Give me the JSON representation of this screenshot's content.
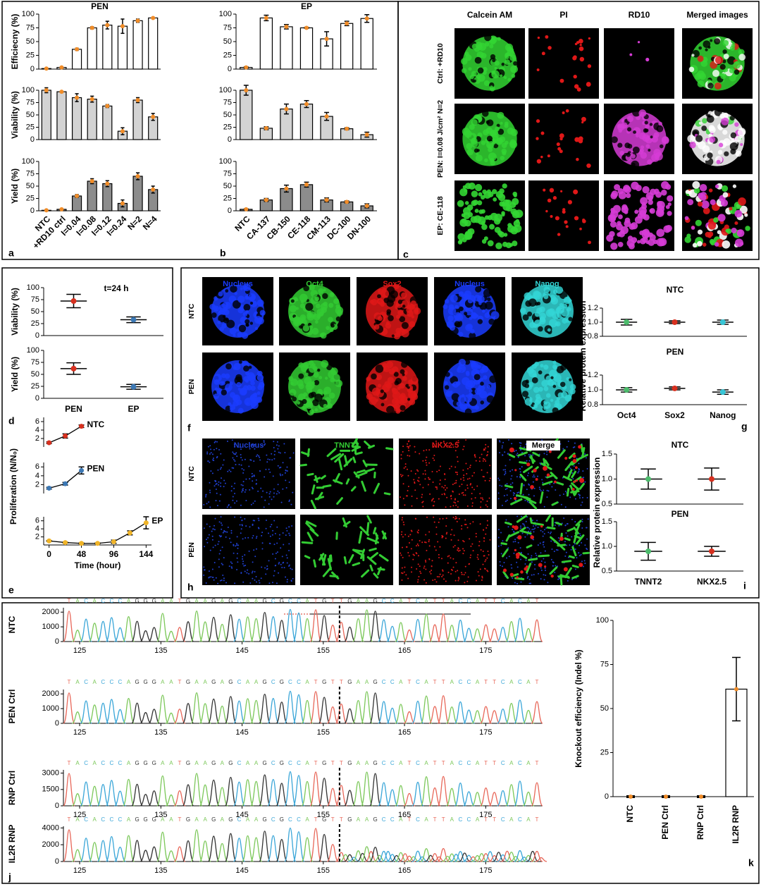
{
  "chart_data": [
    {
      "type": "bar",
      "title": "PEN",
      "ylabel": "Efficiecny (%)",
      "values": [
        1,
        3,
        36,
        75,
        80,
        78,
        88,
        93
      ],
      "errors": [
        0.5,
        1,
        2,
        2,
        7,
        13,
        3,
        1
      ],
      "color": "#ffffff",
      "ylim": [
        0,
        100
      ],
      "yticks": [
        0,
        25,
        50,
        75,
        100
      ]
    },
    {
      "type": "bar",
      "ylabel": "Viability (%)",
      "values": [
        100,
        97,
        85,
        82,
        68,
        17,
        80,
        46
      ],
      "errors": [
        5,
        1,
        8,
        6,
        3,
        7,
        5,
        7
      ],
      "color": "#d3d3d3",
      "ylim": [
        0,
        100
      ],
      "yticks": [
        0,
        25,
        50,
        75,
        100
      ]
    },
    {
      "type": "bar",
      "ylabel": "Yield (%)",
      "panel_label": "a",
      "categories": [
        "NTC",
        "+RD10 ctrl",
        "I=0.04",
        "I=0.08",
        "I=0.12",
        "I=0.24",
        "N=2",
        "N=4"
      ],
      "values": [
        1,
        3,
        30,
        60,
        55,
        15,
        70,
        43
      ],
      "errors": [
        0.5,
        1,
        3,
        5,
        6,
        7,
        7,
        7
      ],
      "color": "#8c8c8c",
      "ylim": [
        0,
        100
      ],
      "yticks": [
        0,
        25,
        50,
        75,
        100
      ]
    },
    {
      "type": "bar",
      "title": "EP",
      "values": [
        3,
        93,
        77,
        75,
        55,
        83,
        92
      ],
      "errors": [
        1,
        5,
        4,
        1,
        13,
        4,
        7
      ],
      "color": "#ffffff",
      "ylim": [
        0,
        100
      ],
      "yticks": [
        0,
        25,
        50,
        75,
        100
      ]
    },
    {
      "type": "bar",
      "values": [
        100,
        23,
        62,
        72,
        47,
        22,
        10
      ],
      "errors": [
        10,
        3,
        10,
        7,
        8,
        2,
        5
      ],
      "color": "#d3d3d3",
      "ylim": [
        0,
        100
      ],
      "yticks": [
        0,
        25,
        50,
        75,
        100
      ]
    },
    {
      "type": "bar",
      "panel_label": "b",
      "categories": [
        "NTC",
        "CA-137",
        "CB-150",
        "CE-118",
        "CM-113",
        "DC-100",
        "DN-100"
      ],
      "values": [
        3,
        22,
        45,
        53,
        22,
        18,
        10
      ],
      "errors": [
        1,
        3,
        7,
        5,
        4,
        2,
        4
      ],
      "color": "#8c8c8c",
      "ylim": [
        0,
        100
      ],
      "yticks": [
        0,
        25,
        50,
        75,
        100
      ]
    },
    {
      "type": "dot",
      "title": "t=24 h",
      "ylabel": "Viability (%)",
      "values": [
        72,
        33
      ],
      "errors": [
        14,
        6
      ],
      "colors": [
        "#d7301f",
        "#3c78b4"
      ],
      "ylim": [
        0,
        100
      ],
      "yticks": [
        0,
        25,
        50,
        75,
        100
      ]
    },
    {
      "type": "dot",
      "ylabel": "Yield (%)",
      "panel_label": "d",
      "categories": [
        "PEN",
        "EP"
      ],
      "values": [
        62,
        24
      ],
      "errors": [
        12,
        5
      ],
      "colors": [
        "#d7301f",
        "#3c78b4"
      ],
      "ylim": [
        0,
        100
      ],
      "yticks": [
        0,
        25,
        50,
        75,
        100
      ]
    },
    {
      "type": "line",
      "x": [
        0,
        24,
        48
      ],
      "series": [
        {
          "name": "NTC",
          "color": "#d7301f",
          "values": [
            1,
            2.6,
            4.9
          ],
          "errors": [
            0.2,
            0.5,
            0.3
          ]
        }
      ],
      "xlim": [
        -8,
        152
      ],
      "ylim": [
        0,
        7
      ],
      "yticks": [
        2,
        4,
        6
      ]
    },
    {
      "type": "line",
      "ylabel": "Proliferation (N/N₀)",
      "x": [
        0,
        24,
        48
      ],
      "series": [
        {
          "name": "PEN",
          "color": "#3c78b4",
          "values": [
            1.2,
            2.2,
            5.2
          ],
          "errors": [
            0.2,
            0.3,
            0.8
          ]
        }
      ],
      "xlim": [
        -8,
        152
      ],
      "ylim": [
        0,
        7
      ],
      "yticks": [
        2,
        4,
        6
      ]
    },
    {
      "type": "line",
      "panel_label": "e",
      "xlabel": "Time (hour)",
      "x": [
        0,
        24,
        48,
        72,
        96,
        120,
        144
      ],
      "series": [
        {
          "name": "EP",
          "color": "#f0b428",
          "values": [
            1,
            0.6,
            0.4,
            0.4,
            0.8,
            3,
            5.5
          ],
          "errors": [
            0.1,
            0.1,
            0.1,
            0.1,
            0.4,
            0.5,
            1.5
          ]
        }
      ],
      "xlim": [
        -8,
        152
      ],
      "xticks": [
        0,
        48,
        96,
        144
      ],
      "ylim": [
        0,
        7
      ],
      "yticks": [
        2,
        4,
        6
      ]
    },
    {
      "type": "dot",
      "title": "NTC",
      "ylabel": "Relative protein expression",
      "values": [
        1.0,
        1.0,
        1.0
      ],
      "errors": [
        0.04,
        0.02,
        0.03
      ],
      "colors": [
        "#4cbb6c",
        "#d7301f",
        "#38c6d6"
      ],
      "ylim": [
        0.8,
        1.2
      ],
      "yticks": [
        0.8,
        {
          "value": 1,
          "label": "1.0"
        },
        1.2
      ]
    },
    {
      "type": "dot",
      "title": "PEN",
      "panel_label": "g",
      "categories": [
        "Oct4",
        "Sox2",
        "Nanog"
      ],
      "values": [
        1.0,
        1.02,
        0.97
      ],
      "errors": [
        0.03,
        0.02,
        0.03
      ],
      "colors": [
        "#4cbb6c",
        "#d7301f",
        "#38c6d6"
      ],
      "ylim": [
        0.8,
        1.2
      ],
      "yticks": [
        0.8,
        {
          "value": 1,
          "label": "1.0"
        },
        1.2
      ]
    },
    {
      "type": "dot",
      "title": "NTC",
      "ylabel": "Relative protein expression",
      "values": [
        1.0,
        1.0
      ],
      "errors": [
        0.2,
        0.22
      ],
      "colors": [
        "#4cbb6c",
        "#d7301f"
      ],
      "ylim": [
        0.5,
        1.5
      ],
      "yticks": [
        0.5,
        {
          "value": 1,
          "label": "1.0"
        },
        1.5
      ]
    },
    {
      "type": "dot",
      "title": "PEN",
      "panel_label": "i",
      "categories": [
        "TNNT2",
        "NKX2.5"
      ],
      "values": [
        0.9,
        0.9
      ],
      "errors": [
        0.18,
        0.1
      ],
      "colors": [
        "#4cbb6c",
        "#d7301f"
      ],
      "ylim": [
        0.5,
        1.5
      ],
      "yticks": [
        0.5,
        {
          "value": 1,
          "label": "1.0"
        },
        1.5
      ]
    },
    {
      "type": "chromatogram",
      "ylabel": "NTC",
      "sequence": "TACACCCAGGGAATGAAGAGCAAGCGCCATGTTGAAGCCATCATTACCATTCACAT",
      "cut_site": 157,
      "xlim": [
        123,
        182
      ],
      "xticks": [
        125,
        135,
        145,
        155,
        165,
        175
      ],
      "ylim": [
        0,
        2300
      ],
      "yticks": [
        0,
        1000,
        2000
      ]
    },
    {
      "type": "chromatogram",
      "ylabel": "PEN Ctrl",
      "sequence": "TACACCCAGGGAATGAAGAGCAAGCGCCATGTTGAAGCCATCATTACCATTCACAT",
      "cut_site": 157,
      "xlim": [
        123,
        182
      ],
      "xticks": [
        125,
        135,
        145,
        155,
        165,
        175
      ],
      "ylim": [
        0,
        2300
      ],
      "yticks": [
        0,
        1000,
        2000
      ]
    },
    {
      "type": "chromatogram",
      "ylabel": "RNP Ctrl",
      "sequence": "TACACCCAGGGAATGAAGAGCAAGCGCCATGTTGAAGCCATCATTACCATTCACAT",
      "cut_site": 157,
      "xlim": [
        123,
        182
      ],
      "xticks": [
        125,
        135,
        145,
        155,
        165,
        175
      ],
      "ylim": [
        0,
        3300
      ],
      "yticks": [
        0,
        1500,
        3000
      ]
    },
    {
      "type": "chromatogram",
      "ylabel": "IL2R RNP",
      "panel_label": "j",
      "sequence": "TACACCCAGGGAATGAAGAGCAAGCGCCATGTTGAAGCCATCATTACCATTCACAT",
      "cut_site": 157,
      "xlim": [
        123,
        182
      ],
      "xticks": [
        125,
        135,
        145,
        155,
        165,
        175
      ],
      "ylim": [
        0,
        4200
      ],
      "yticks": [
        0,
        2000,
        4000
      ]
    },
    {
      "type": "bar",
      "ylabel": "Knockout efficiency (Indel %)",
      "panel_label": "k",
      "categories": [
        "NTC",
        "PEN Ctrl",
        "RNP Ctrl",
        "IL2R RNP"
      ],
      "values": [
        0,
        0,
        0,
        61
      ],
      "errors": [
        0.5,
        0.5,
        0.5,
        18
      ],
      "color": "#ffffff",
      "ylim": [
        0,
        100
      ],
      "yticks": [
        0,
        25,
        50,
        75,
        100
      ]
    }
  ],
  "image_panels": [
    {
      "panel_label": "c",
      "columns": [
        "Calcein AM",
        "PI",
        "RD10",
        "Merged images"
      ],
      "rows": [
        "Ctrl: +RD10",
        "PEN: I=0.08 J/cm² N=2",
        "EP: CE-118"
      ],
      "colors": [
        "#33d633",
        "#e01818",
        "#d63cd6",
        "#ffffff"
      ]
    },
    {
      "panel_label": "f",
      "columns": [
        "Nucleus",
        "Oct4",
        "Sox2",
        "Nucleus",
        "Nanog"
      ],
      "rows": [
        "NTC",
        "PEN"
      ],
      "colors": [
        "#1a3cff",
        "#33cc33",
        "#e01818",
        "#1a3cff",
        "#33d6d6"
      ]
    },
    {
      "panel_label": "h",
      "columns": [
        "Nucleus",
        "TNNT2",
        "NKX2.5",
        "Merge"
      ],
      "rows": [
        "NTC",
        "PEN"
      ],
      "colors": [
        "#2040d0",
        "#33cc33",
        "#e01818",
        "#ffffff"
      ]
    }
  ]
}
